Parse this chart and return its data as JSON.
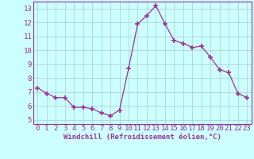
{
  "x": [
    0,
    1,
    2,
    3,
    4,
    5,
    6,
    7,
    8,
    9,
    10,
    11,
    12,
    13,
    14,
    15,
    16,
    17,
    18,
    19,
    20,
    21,
    22,
    23
  ],
  "y": [
    7.3,
    6.9,
    6.6,
    6.6,
    5.9,
    5.9,
    5.8,
    5.5,
    5.3,
    5.7,
    8.7,
    11.9,
    12.5,
    13.2,
    11.9,
    10.7,
    10.5,
    10.2,
    10.3,
    9.5,
    8.6,
    8.4,
    6.9,
    6.6
  ],
  "line_color": "#993399",
  "marker": "+",
  "marker_size": 4,
  "bg_color": "#ccffff",
  "grid_color": "#aacccc",
  "xlabel": "Windchill (Refroidissement éolien,°C)",
  "xlabel_fontsize": 6.5,
  "xtick_labels": [
    "0",
    "1",
    "2",
    "3",
    "4",
    "5",
    "6",
    "7",
    "8",
    "9",
    "10",
    "11",
    "12",
    "13",
    "14",
    "15",
    "16",
    "17",
    "18",
    "19",
    "20",
    "21",
    "22",
    "23"
  ],
  "ytick_min": 5,
  "ytick_max": 13,
  "ylim": [
    4.7,
    13.5
  ],
  "xlim": [
    -0.5,
    23.5
  ],
  "tick_fontsize": 6.5,
  "axis_color": "#993399"
}
